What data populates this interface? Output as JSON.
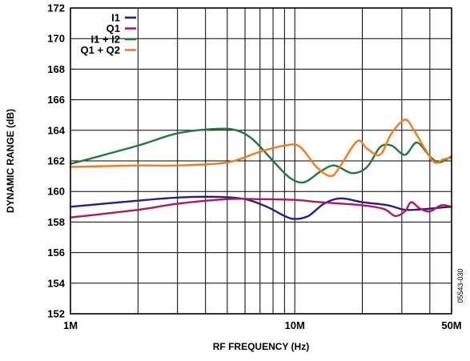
{
  "figure_id": "05543-030",
  "chart_data": {
    "type": "line",
    "xlabel": "RF FREQUENCY (Hz)",
    "ylabel": "DYNAMIC RANGE (dB)",
    "xscale": "log",
    "xlim": [
      1000000,
      50000000
    ],
    "ylim": [
      152,
      172
    ],
    "grid": true,
    "legend_position": "top-left",
    "x_ticks": [
      {
        "value": 1000000,
        "label": "1M"
      },
      {
        "value": 10000000,
        "label": "10M"
      },
      {
        "value": 50000000,
        "label": "50M"
      }
    ],
    "y_ticks": [
      {
        "value": 152,
        "label": "152"
      },
      {
        "value": 154,
        "label": "154"
      },
      {
        "value": 156,
        "label": "156"
      },
      {
        "value": 158,
        "label": "158"
      },
      {
        "value": 160,
        "label": "160"
      },
      {
        "value": 162,
        "label": "162"
      },
      {
        "value": 164,
        "label": "164"
      },
      {
        "value": 166,
        "label": "166"
      },
      {
        "value": 168,
        "label": "168"
      },
      {
        "value": 170,
        "label": "170"
      },
      {
        "value": 172,
        "label": "172"
      }
    ],
    "series": [
      {
        "name": "I1",
        "color": "#2d1a8c",
        "points": [
          [
            1000000,
            159.0
          ],
          [
            2000000,
            159.4
          ],
          [
            3000000,
            159.6
          ],
          [
            4500000,
            159.65
          ],
          [
            6000000,
            159.5
          ],
          [
            7500000,
            159.0
          ],
          [
            9000000,
            158.4
          ],
          [
            10000000,
            158.2
          ],
          [
            11500000,
            158.4
          ],
          [
            13500000,
            159.2
          ],
          [
            16000000,
            159.55
          ],
          [
            20000000,
            159.3
          ],
          [
            26000000,
            159.1
          ],
          [
            31000000,
            158.8
          ],
          [
            38000000,
            158.85
          ],
          [
            45000000,
            158.95
          ],
          [
            50000000,
            159.0
          ]
        ]
      },
      {
        "name": "Q1",
        "color": "#b5175a",
        "points": [
          [
            1000000,
            158.3
          ],
          [
            2000000,
            158.8
          ],
          [
            3000000,
            159.2
          ],
          [
            5000000,
            159.5
          ],
          [
            7000000,
            159.5
          ],
          [
            10000000,
            159.45
          ],
          [
            13000000,
            159.3
          ],
          [
            20000000,
            159.1
          ],
          [
            25000000,
            158.85
          ],
          [
            28000000,
            158.4
          ],
          [
            31000000,
            158.7
          ],
          [
            33000000,
            159.3
          ],
          [
            36000000,
            158.9
          ],
          [
            40000000,
            158.7
          ],
          [
            45000000,
            159.1
          ],
          [
            50000000,
            159.0
          ]
        ]
      },
      {
        "name": "I1 + I2",
        "color": "#1f7a3a",
        "points": [
          [
            1000000,
            161.8
          ],
          [
            2000000,
            163.0
          ],
          [
            3000000,
            163.8
          ],
          [
            4500000,
            164.1
          ],
          [
            5500000,
            164.0
          ],
          [
            6500000,
            163.4
          ],
          [
            8000000,
            162.0
          ],
          [
            9500000,
            160.9
          ],
          [
            11000000,
            160.6
          ],
          [
            13000000,
            161.3
          ],
          [
            15000000,
            161.7
          ],
          [
            18000000,
            161.2
          ],
          [
            21000000,
            161.6
          ],
          [
            24000000,
            162.9
          ],
          [
            27000000,
            163.0
          ],
          [
            31000000,
            162.4
          ],
          [
            35000000,
            163.2
          ],
          [
            40000000,
            162.3
          ],
          [
            44000000,
            161.9
          ],
          [
            50000000,
            162.3
          ]
        ]
      },
      {
        "name": "Q1 + Q2",
        "color": "#f07c1e",
        "points": [
          [
            1000000,
            161.6
          ],
          [
            2000000,
            161.7
          ],
          [
            3000000,
            161.7
          ],
          [
            5000000,
            161.9
          ],
          [
            7000000,
            162.6
          ],
          [
            9000000,
            163.0
          ],
          [
            10500000,
            162.95
          ],
          [
            12500000,
            161.6
          ],
          [
            14500000,
            161.0
          ],
          [
            16000000,
            161.7
          ],
          [
            19000000,
            163.3
          ],
          [
            21000000,
            162.8
          ],
          [
            24000000,
            162.4
          ],
          [
            27000000,
            163.8
          ],
          [
            31000000,
            164.7
          ],
          [
            34000000,
            164.0
          ],
          [
            38000000,
            162.8
          ],
          [
            42000000,
            161.9
          ],
          [
            46000000,
            162.1
          ],
          [
            50000000,
            162.2
          ]
        ]
      }
    ]
  }
}
